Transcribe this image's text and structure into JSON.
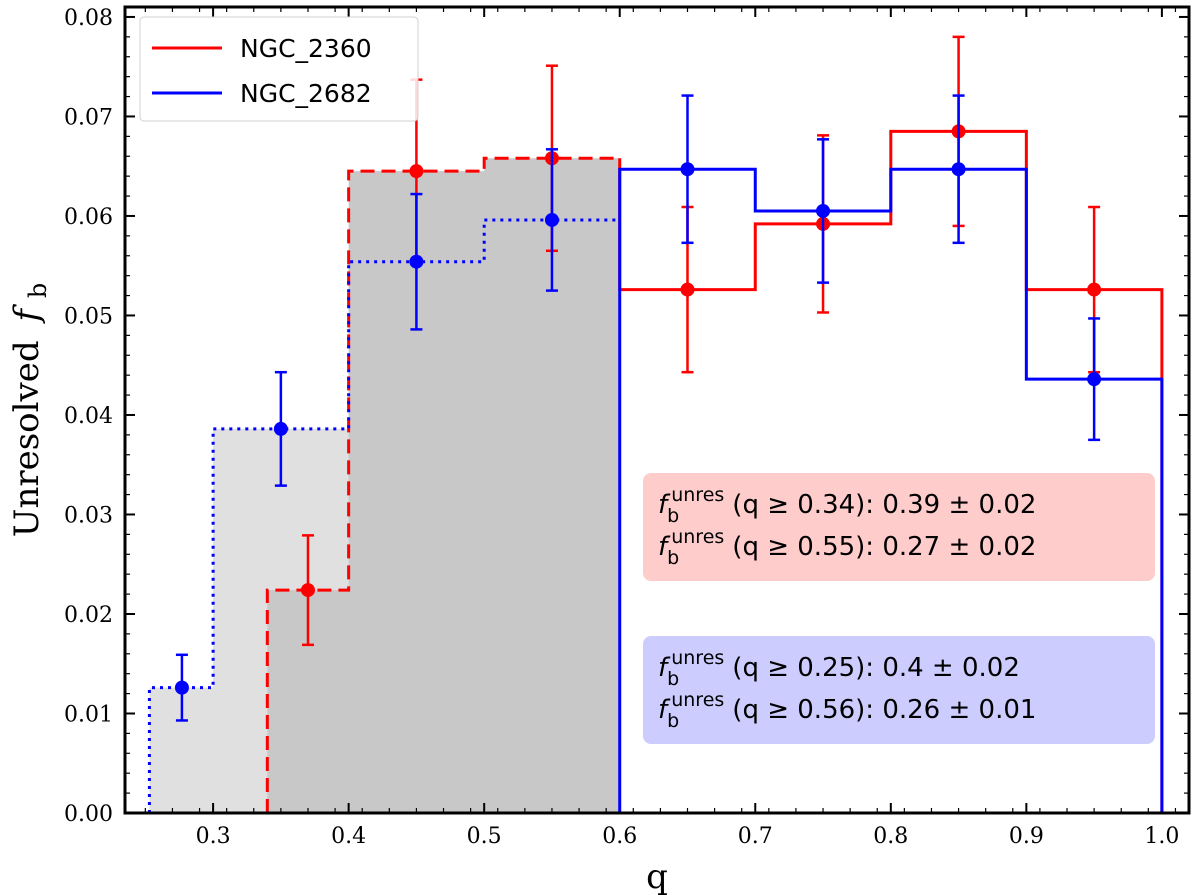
{
  "chart_data": {
    "type": "step-histogram",
    "xlabel": "q",
    "ylabel_main": "Unresolved",
    "ylabel_sym": "f",
    "ylabel_sub": "b",
    "xlim": [
      0.235,
      1.02
    ],
    "ylim": [
      0.0,
      0.081
    ],
    "xticks": [
      "0.3",
      "0.4",
      "0.5",
      "0.6",
      "0.7",
      "0.8",
      "0.9",
      "1.0"
    ],
    "yticks": [
      "0.00",
      "0.01",
      "0.02",
      "0.03",
      "0.04",
      "0.05",
      "0.06",
      "0.07",
      "0.08"
    ],
    "legend_position": "upper-left",
    "series": [
      {
        "name": "NGC_2360",
        "color": "#ff0000",
        "edges": [
          0.34,
          0.4,
          0.5,
          0.6,
          0.7,
          0.8,
          0.9,
          1.0
        ],
        "heights": [
          0.0224,
          0.0645,
          0.0658,
          0.0526,
          0.0592,
          0.0685,
          0.0526
        ],
        "points": [
          {
            "x": 0.37,
            "y": 0.0224,
            "err": 0.0055
          },
          {
            "x": 0.45,
            "y": 0.0645,
            "err": 0.0092
          },
          {
            "x": 0.55,
            "y": 0.0658,
            "err": 0.0093
          },
          {
            "x": 0.65,
            "y": 0.0526,
            "err": 0.0083
          },
          {
            "x": 0.75,
            "y": 0.0592,
            "err": 0.0089
          },
          {
            "x": 0.85,
            "y": 0.0685,
            "err": 0.0095
          },
          {
            "x": 0.95,
            "y": 0.0526,
            "err": 0.0083
          }
        ],
        "annotation": {
          "color": "#ffcccc",
          "lines": [
            {
              "range": "(q ≥ 0.34): 0.39 ± 0.02"
            },
            {
              "range": "(q ≥ 0.55): 0.27 ± 0.02"
            }
          ]
        }
      },
      {
        "name": "NGC_2682",
        "color": "#0000ff",
        "edges": [
          0.253,
          0.3,
          0.4,
          0.5,
          0.6,
          0.7,
          0.8,
          0.9,
          1.0
        ],
        "heights": [
          0.0126,
          0.0386,
          0.0554,
          0.0596,
          0.0647,
          0.0605,
          0.0647,
          0.0436
        ],
        "points": [
          {
            "x": 0.277,
            "y": 0.0126,
            "err": 0.0033
          },
          {
            "x": 0.35,
            "y": 0.0386,
            "err": 0.0057
          },
          {
            "x": 0.45,
            "y": 0.0554,
            "err": 0.0068
          },
          {
            "x": 0.55,
            "y": 0.0596,
            "err": 0.0071
          },
          {
            "x": 0.65,
            "y": 0.0647,
            "err": 0.0074
          },
          {
            "x": 0.75,
            "y": 0.0605,
            "err": 0.0072
          },
          {
            "x": 0.85,
            "y": 0.0647,
            "err": 0.0074
          },
          {
            "x": 0.95,
            "y": 0.0436,
            "err": 0.0061
          }
        ],
        "annotation": {
          "color": "#ccccff",
          "lines": [
            {
              "range": "(q ≥ 0.25): 0.4 ± 0.02"
            },
            {
              "range": "(q ≥ 0.56): 0.26 ± 0.01"
            }
          ]
        }
      }
    ],
    "annotation_symbol": "f",
    "annotation_sub": "b",
    "annotation_sup": "unres",
    "shading": {
      "color_light": "#e0e0e0",
      "color_dark": "#c8c8c8",
      "end_x": 0.6
    }
  }
}
